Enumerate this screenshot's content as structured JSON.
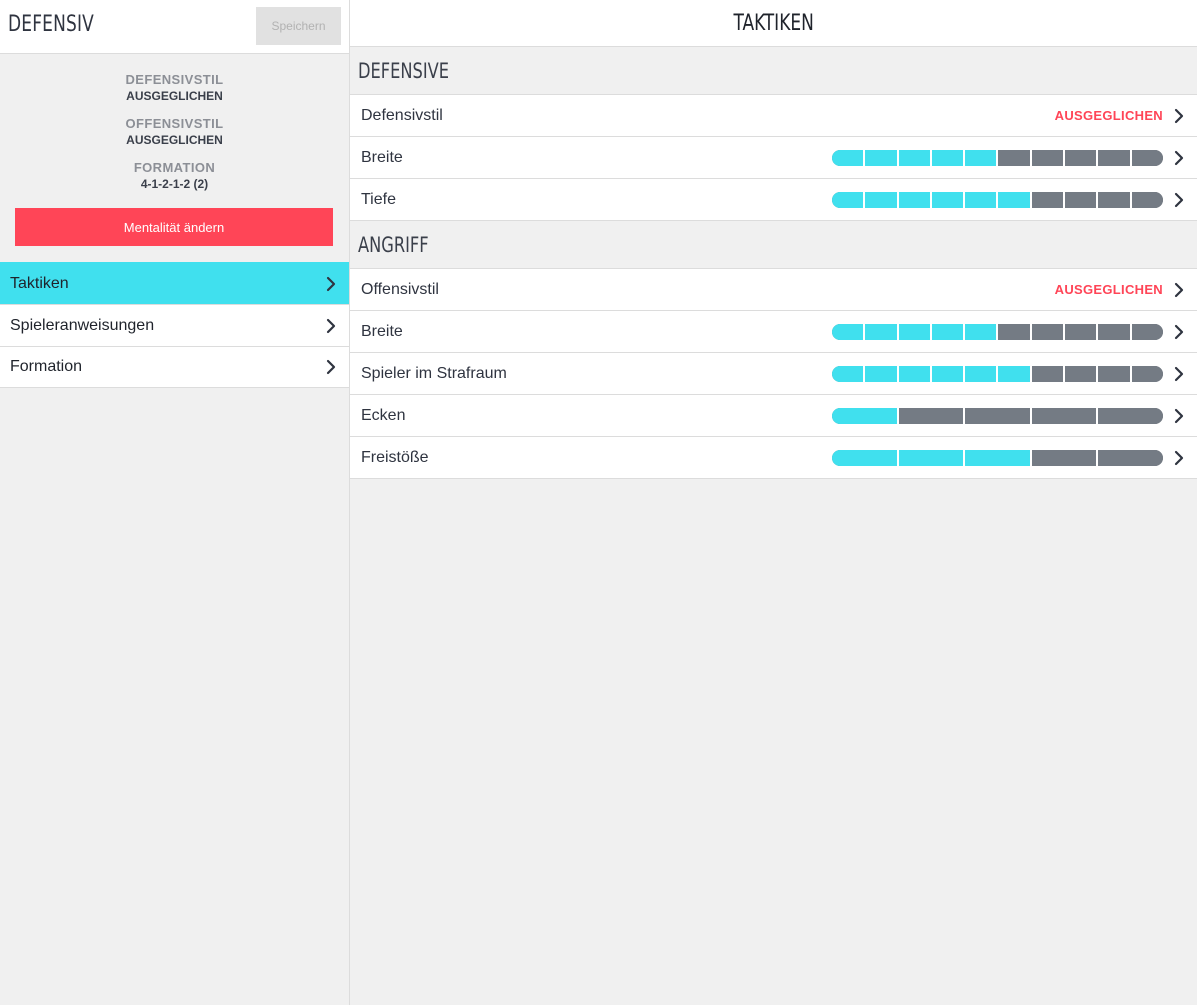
{
  "colors": {
    "accent": "#40e0ee",
    "danger": "#ff4557",
    "inactive": "#747b84"
  },
  "sidebar": {
    "title": "DEFENSIV",
    "save_label": "Speichern",
    "summary": {
      "defensive_style_label": "DEFENSIVSTIL",
      "defensive_style_value": "AUSGEGLICHEN",
      "offensive_style_label": "OFFENSIVSTIL",
      "offensive_style_value": "AUSGEGLICHEN",
      "formation_label": "FORMATION",
      "formation_value": "4-1-2-1-2 (2)"
    },
    "mentality_button": "Mentalität ändern",
    "nav": [
      {
        "label": "Taktiken",
        "active": true,
        "icon": "chevron-right-icon"
      },
      {
        "label": "Spieleranweisungen",
        "active": false,
        "icon": "chevron-right-icon"
      },
      {
        "label": "Formation",
        "active": false,
        "icon": "chevron-right-icon"
      }
    ]
  },
  "main": {
    "title": "TAKTIKEN",
    "sections": [
      {
        "title": "DEFENSIVE",
        "rows": [
          {
            "label": "Defensivstil",
            "value": "AUSGEGLICHEN"
          },
          {
            "label": "Breite",
            "level": 5,
            "segments": 10
          },
          {
            "label": "Tiefe",
            "level": 6,
            "segments": 10
          }
        ]
      },
      {
        "title": "ANGRIFF",
        "rows": [
          {
            "label": "Offensivstil",
            "value": "AUSGEGLICHEN"
          },
          {
            "label": "Breite",
            "level": 5,
            "segments": 10
          },
          {
            "label": "Spieler im Strafraum",
            "level": 6,
            "segments": 10
          },
          {
            "label": "Ecken",
            "level": 1,
            "segments": 5
          },
          {
            "label": "Freistöße",
            "level": 3,
            "segments": 5
          }
        ]
      }
    ]
  }
}
